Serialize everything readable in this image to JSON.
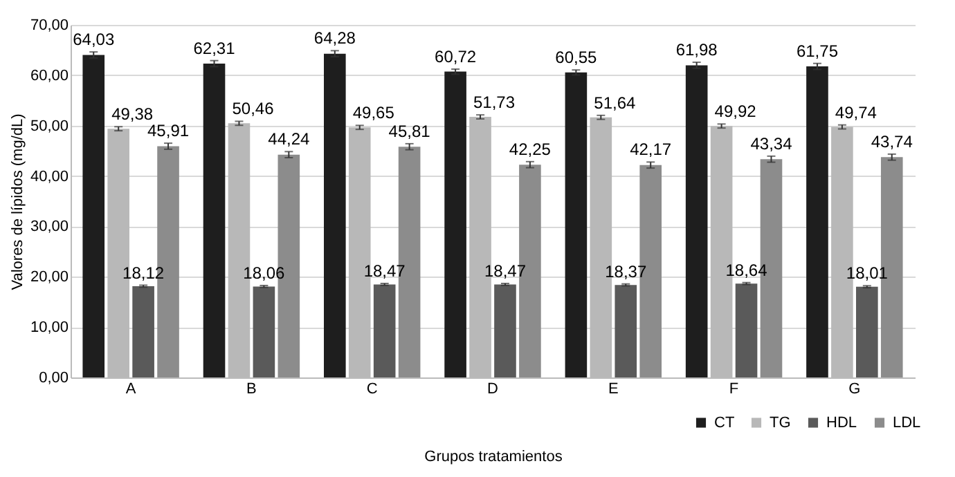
{
  "chart_data": {
    "type": "bar",
    "xlabel": "Grupos tratamientos",
    "ylabel": "Valores de lípidos (mg/dL)",
    "categories": [
      "A",
      "B",
      "C",
      "D",
      "E",
      "F",
      "G"
    ],
    "series": [
      {
        "name": "CT",
        "color": "#1e1e1e",
        "values": [
          64.03,
          62.31,
          64.28,
          60.72,
          60.55,
          61.98,
          61.75
        ],
        "errors": [
          0.6,
          0.6,
          0.6,
          0.5,
          0.5,
          0.6,
          0.6
        ],
        "value_labels": [
          "64,03",
          "62,31",
          "64,28",
          "60,72",
          "60,55",
          "61,98",
          "61,75"
        ]
      },
      {
        "name": "TG",
        "color": "#b8b8b8",
        "values": [
          49.38,
          50.46,
          49.65,
          51.73,
          51.64,
          49.92,
          49.74
        ],
        "errors": [
          0.4,
          0.4,
          0.4,
          0.4,
          0.4,
          0.4,
          0.4
        ],
        "value_labels": [
          "49,38",
          "50,46",
          "49,65",
          "51,73",
          "51,64",
          "49,92",
          "49,74"
        ]
      },
      {
        "name": "HDL",
        "color": "#5a5a5a",
        "values": [
          18.12,
          18.06,
          18.47,
          18.47,
          18.37,
          18.64,
          18.01
        ],
        "errors": [
          0.2,
          0.2,
          0.2,
          0.2,
          0.2,
          0.2,
          0.2
        ],
        "value_labels": [
          "18,12",
          "18,06",
          "18,47",
          "18,47",
          "18,37",
          "18,64",
          "18,01"
        ]
      },
      {
        "name": "LDL",
        "color": "#8c8c8c",
        "values": [
          45.91,
          44.24,
          45.81,
          42.25,
          42.17,
          43.34,
          43.74
        ],
        "errors": [
          0.6,
          0.6,
          0.6,
          0.6,
          0.6,
          0.6,
          0.6
        ],
        "value_labels": [
          "45,91",
          "44,24",
          "45,81",
          "42,25",
          "42,17",
          "43,34",
          "43,74"
        ]
      }
    ],
    "ylim": [
      0,
      70
    ],
    "yticks": [
      {
        "value": 0,
        "label": "0,00"
      },
      {
        "value": 10,
        "label": "10,00"
      },
      {
        "value": 20,
        "label": "20,00"
      },
      {
        "value": 30,
        "label": "30,00"
      },
      {
        "value": 40,
        "label": "40,00"
      },
      {
        "value": 50,
        "label": "50,00"
      },
      {
        "value": 60,
        "label": "60,00"
      },
      {
        "value": 70,
        "label": "70,00"
      }
    ],
    "grid": "y",
    "legend": "bottom right"
  }
}
